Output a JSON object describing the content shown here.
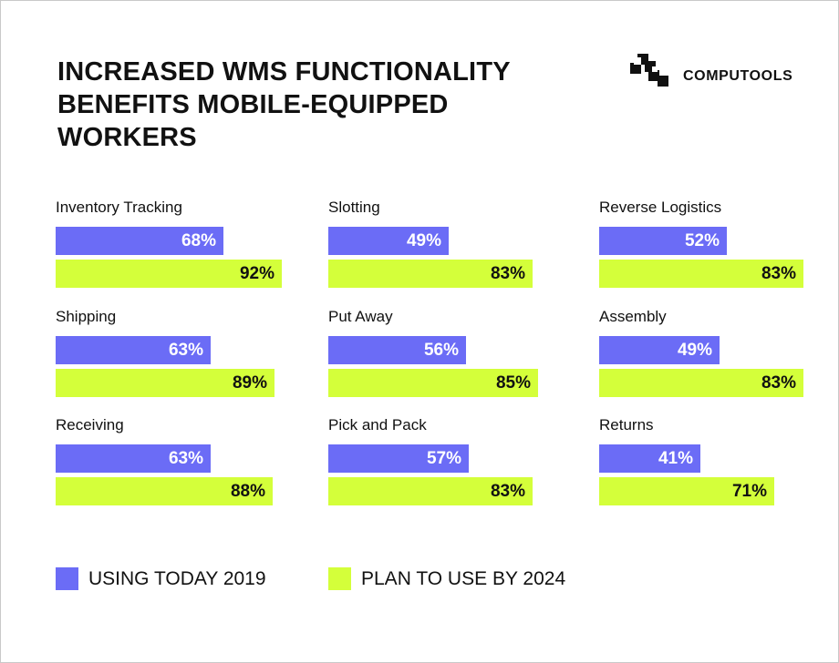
{
  "brand": {
    "name": "COMPUTOOLS",
    "logo_icon": "computools-logo-icon"
  },
  "colors": {
    "today": "#6b6cf6",
    "plan": "#d4ff3a"
  },
  "chart_data": {
    "type": "bar",
    "orientation": "horizontal",
    "title": "INCREASED WMS FUNCTIONALITY\nBENEFITS MOBILE-EQUIPPED\nWORKERS",
    "unit": "%",
    "series_names": [
      "USING TODAY 2019",
      "PLAN TO USE BY 2024"
    ],
    "panels": [
      {
        "label": "Inventory Tracking",
        "today": 68,
        "plan": 92
      },
      {
        "label": "Slotting",
        "today": 49,
        "plan": 83
      },
      {
        "label": "Reverse Logistics",
        "today": 52,
        "plan": 83
      },
      {
        "label": "Shipping",
        "today": 63,
        "plan": 89
      },
      {
        "label": "Put Away",
        "today": 56,
        "plan": 85
      },
      {
        "label": "Assembly",
        "today": 49,
        "plan": 83
      },
      {
        "label": "Receiving",
        "today": 63,
        "plan": 88
      },
      {
        "label": "Pick and Pack",
        "today": 57,
        "plan": 83
      },
      {
        "label": "Returns",
        "today": 41,
        "plan": 71
      }
    ]
  },
  "legend": [
    {
      "label": "USING TODAY 2019",
      "color": "#6b6cf6"
    },
    {
      "label": "PLAN TO USE BY 2024",
      "color": "#d4ff3a"
    }
  ]
}
